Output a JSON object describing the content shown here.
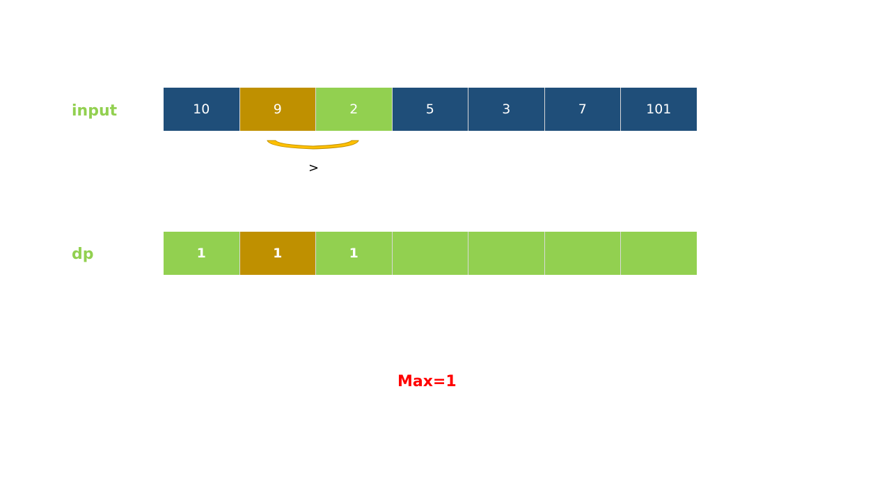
{
  "input": {
    "label": "input",
    "cells": [
      "10",
      "9",
      "2",
      "5",
      "3",
      "7",
      "101"
    ],
    "states": [
      "blue",
      "gold",
      "green",
      "blue",
      "blue",
      "blue",
      "blue"
    ]
  },
  "dp": {
    "label": "dp",
    "cells": [
      "1",
      "1",
      "1",
      "",
      "",
      "",
      ""
    ],
    "states": [
      "green",
      "gold",
      "green",
      "green",
      "green",
      "green",
      "green"
    ]
  },
  "comparison": ">",
  "max": "Max=1",
  "colors": {
    "blue": "#1f4e79",
    "gold": "#bf9000",
    "green": "#92d050",
    "arc": "#ffc000",
    "max": "#ff0000"
  }
}
